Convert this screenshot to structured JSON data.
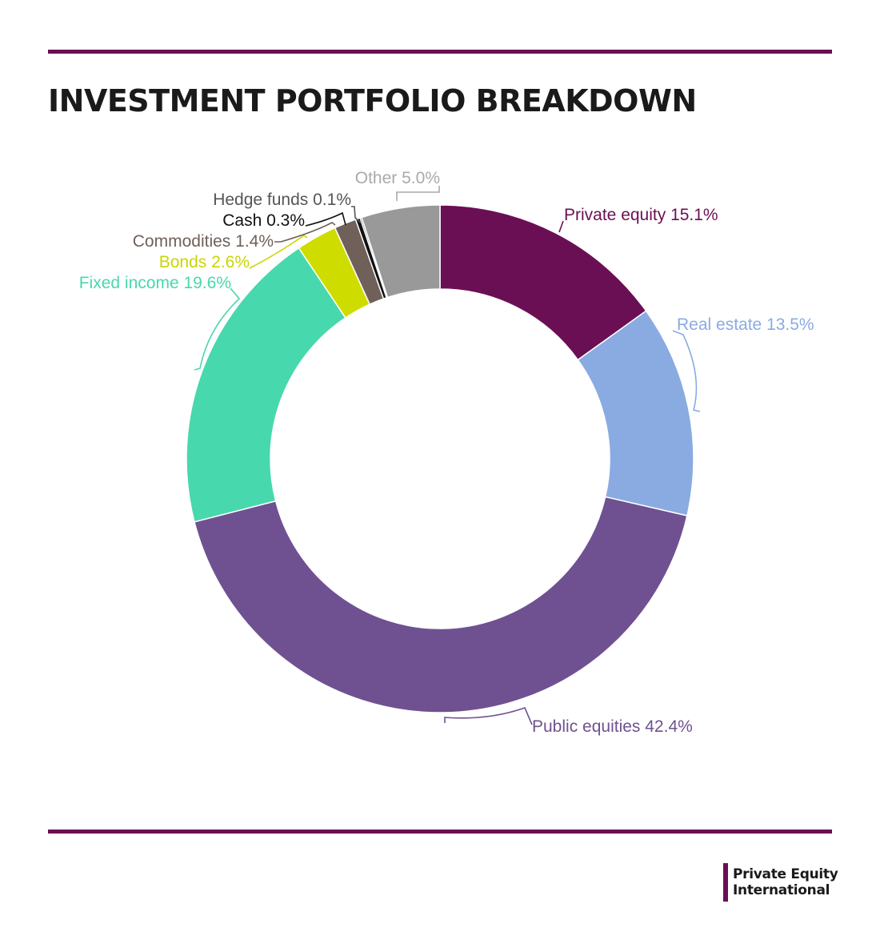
{
  "header": {
    "title": "INVESTMENT PORTFOLIO BREAKDOWN"
  },
  "chart_data": {
    "type": "pie",
    "variant": "donut",
    "title": "INVESTMENT PORTFOLIO BREAKDOWN",
    "unit": "%",
    "slices": [
      {
        "name": "Private equity",
        "value": 15.1,
        "label": "Private equity 15.1%",
        "color": "#6b0f55",
        "label_color": "#6b0f55"
      },
      {
        "name": "Real estate",
        "value": 13.5,
        "label": "Real estate 13.5%",
        "color": "#8aabe2",
        "label_color": "#8aabe2"
      },
      {
        "name": "Public equities",
        "value": 42.4,
        "label": "Public equities 42.4%",
        "color": "#6f5191",
        "label_color": "#6f5191"
      },
      {
        "name": "Fixed income",
        "value": 19.6,
        "label": "Fixed income 19.6%",
        "color": "#48d8ad",
        "label_color": "#48d8ad"
      },
      {
        "name": "Bonds",
        "value": 2.6,
        "label": "Bonds 2.6%",
        "color": "#cfdc00",
        "label_color": "#c9d600"
      },
      {
        "name": "Commodities",
        "value": 1.4,
        "label": "Commodities 1.4%",
        "color": "#6f6159",
        "label_color": "#6f6159"
      },
      {
        "name": "Cash",
        "value": 0.3,
        "label": "Cash 0.3%",
        "color": "#111111",
        "label_color": "#111111"
      },
      {
        "name": "Hedge funds",
        "value": 0.1,
        "label": "Hedge funds 0.1%",
        "color": "#3d3d3d",
        "label_color": "#555555"
      },
      {
        "name": "Other",
        "value": 5.0,
        "label": "Other 5.0%",
        "color": "#999999",
        "label_color": "#aaaaaa"
      }
    ]
  },
  "brand": {
    "line1": "Private Equity",
    "line2": "International",
    "accent": "#6b0f55"
  }
}
